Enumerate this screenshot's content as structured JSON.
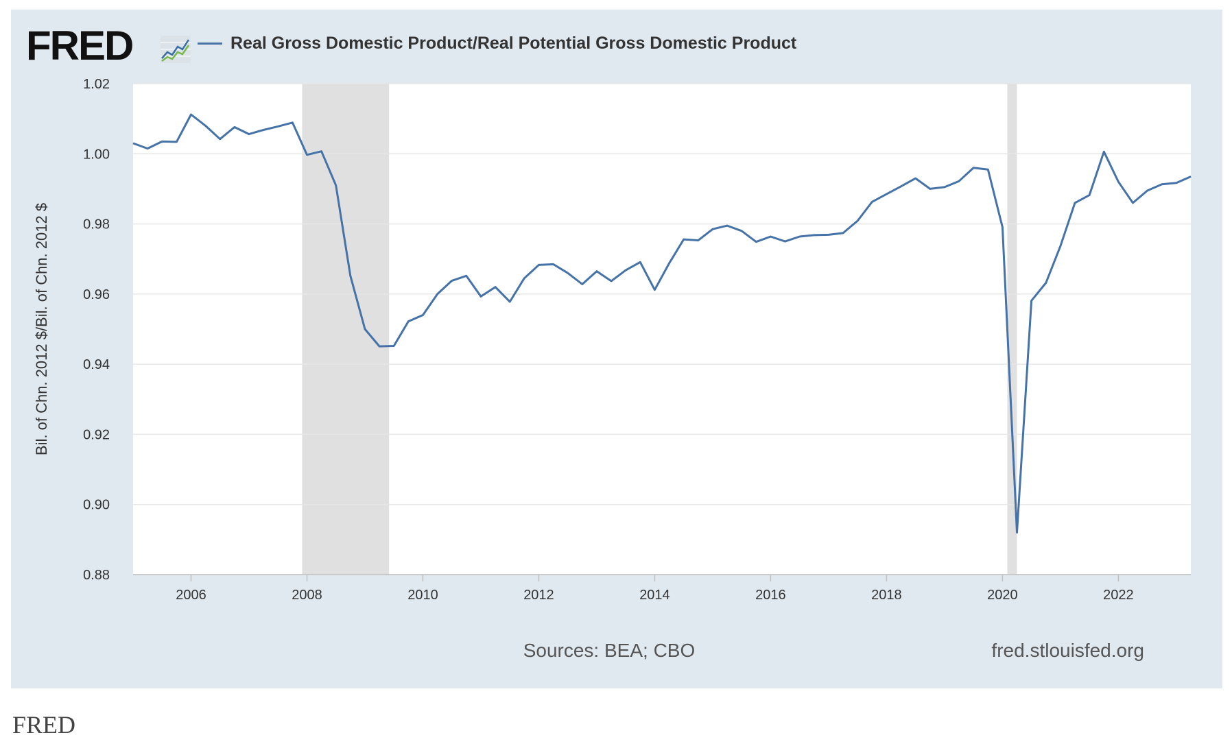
{
  "logo": {
    "text": "FRED",
    "icon": "fred-trend-line-icon"
  },
  "footer": {
    "label": "FRED"
  },
  "colors": {
    "background": "#e1e9f0",
    "series": "#4572a7",
    "recession": "#e0e0e0"
  },
  "chart_data": {
    "type": "line",
    "title": "",
    "xlabel": "",
    "ylabel": "Bil. of Chn. 2012 $/Bil. of Chn. 2012 $",
    "ylim": [
      0.88,
      1.02
    ],
    "xlim": [
      2005.0,
      2023.25
    ],
    "grid": true,
    "legend_position": "top-left",
    "x_ticks": [
      "2006",
      "2008",
      "2010",
      "2012",
      "2014",
      "2016",
      "2018",
      "2020",
      "2022"
    ],
    "y_ticks": [
      "0.88",
      "0.90",
      "0.92",
      "0.94",
      "0.96",
      "0.98",
      "1.00",
      "1.02"
    ],
    "sources": "Sources: BEA; CBO",
    "site": "fred.stlouisfed.org",
    "recessions": [
      {
        "start": "2007-12",
        "end": "2009-06"
      },
      {
        "start": "2020-02",
        "end": "2020-04"
      }
    ],
    "series": [
      {
        "name": "Real Gross Domestic Product/Real Potential Gross Domestic Product",
        "x": [
          "2005-Q1",
          "2005-Q2",
          "2005-Q3",
          "2005-Q4",
          "2006-Q1",
          "2006-Q2",
          "2006-Q3",
          "2006-Q4",
          "2007-Q1",
          "2007-Q2",
          "2007-Q3",
          "2007-Q4",
          "2008-Q1",
          "2008-Q2",
          "2008-Q3",
          "2008-Q4",
          "2009-Q1",
          "2009-Q2",
          "2009-Q3",
          "2009-Q4",
          "2010-Q1",
          "2010-Q2",
          "2010-Q3",
          "2010-Q4",
          "2011-Q1",
          "2011-Q2",
          "2011-Q3",
          "2011-Q4",
          "2012-Q1",
          "2012-Q2",
          "2012-Q3",
          "2012-Q4",
          "2013-Q1",
          "2013-Q2",
          "2013-Q3",
          "2013-Q4",
          "2014-Q1",
          "2014-Q2",
          "2014-Q3",
          "2014-Q4",
          "2015-Q1",
          "2015-Q2",
          "2015-Q3",
          "2015-Q4",
          "2016-Q1",
          "2016-Q2",
          "2016-Q3",
          "2016-Q4",
          "2017-Q1",
          "2017-Q2",
          "2017-Q3",
          "2017-Q4",
          "2018-Q1",
          "2018-Q2",
          "2018-Q3",
          "2018-Q4",
          "2019-Q1",
          "2019-Q2",
          "2019-Q3",
          "2019-Q4",
          "2020-Q1",
          "2020-Q2",
          "2020-Q3",
          "2020-Q4",
          "2021-Q1",
          "2021-Q2",
          "2021-Q3",
          "2021-Q4",
          "2022-Q1",
          "2022-Q2",
          "2022-Q3",
          "2022-Q4",
          "2023-Q1",
          "2023-Q2"
        ],
        "values": [
          1.003,
          1.0015,
          1.0035,
          1.0034,
          1.0112,
          1.008,
          1.0042,
          1.0076,
          1.0056,
          1.0068,
          1.0078,
          1.0089,
          0.9997,
          1.0007,
          0.991,
          0.9652,
          0.95,
          0.9451,
          0.9452,
          0.9522,
          0.954,
          0.96,
          0.9638,
          0.9652,
          0.9593,
          0.962,
          0.9578,
          0.9645,
          0.9683,
          0.9685,
          0.966,
          0.9628,
          0.9665,
          0.9637,
          0.9668,
          0.9691,
          0.9612,
          0.9688,
          0.9756,
          0.9753,
          0.9785,
          0.9795,
          0.978,
          0.9749,
          0.9764,
          0.975,
          0.9764,
          0.9768,
          0.9769,
          0.9774,
          0.9809,
          0.9863,
          0.9885,
          0.9907,
          0.993,
          0.99,
          0.9905,
          0.9922,
          0.996,
          0.9955,
          0.9791,
          0.892,
          0.9581,
          0.9632,
          0.9737,
          0.986,
          0.9882,
          1.0006,
          0.992,
          0.986,
          0.9895,
          0.9913,
          0.9917,
          0.9935
        ]
      }
    ]
  }
}
